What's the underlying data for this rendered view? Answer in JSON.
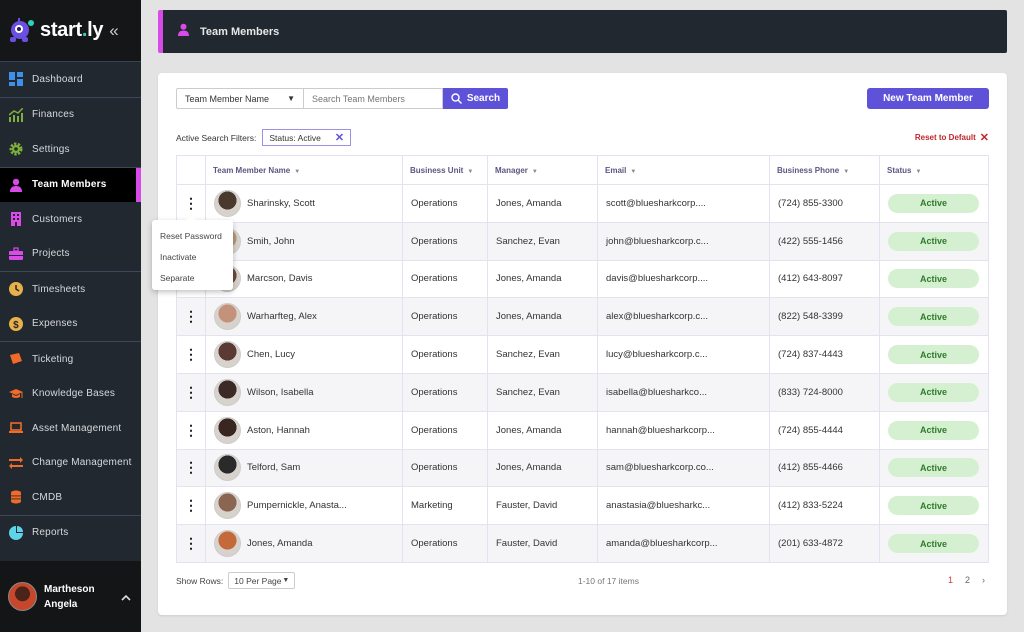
{
  "app": {
    "logo_text_a": "start",
    "logo_text_dot": ".",
    "logo_text_b": "ly",
    "collapse_icon": "«"
  },
  "sidebar": {
    "groups": [
      [
        {
          "label": "Dashboard",
          "icon": "dashboard-icon",
          "color": "#3d8fe8"
        }
      ],
      [
        {
          "label": "Finances",
          "icon": "finances-icon",
          "color": "#7fb03c"
        },
        {
          "label": "Settings",
          "icon": "gear-icon",
          "color": "#7fb03c"
        }
      ],
      [
        {
          "label": "Team Members",
          "icon": "person-icon",
          "color": "#d94be8",
          "active": true
        },
        {
          "label": "Customers",
          "icon": "building-icon",
          "color": "#d94be8"
        },
        {
          "label": "Projects",
          "icon": "briefcase-icon",
          "color": "#d94be8"
        }
      ],
      [
        {
          "label": "Timesheets",
          "icon": "clock-icon",
          "color": "#e9b04a"
        },
        {
          "label": "Expenses",
          "icon": "dollar-icon",
          "color": "#e9b04a"
        }
      ],
      [
        {
          "label": "Ticketing",
          "icon": "ticket-icon",
          "color": "#f06a2a"
        },
        {
          "label": "Knowledge Bases",
          "icon": "graduation-cap-icon",
          "color": "#f06a2a"
        },
        {
          "label": "Asset Management",
          "icon": "laptop-icon",
          "color": "#f06a2a"
        },
        {
          "label": "Change Management",
          "icon": "swap-icon",
          "color": "#f06a2a"
        },
        {
          "label": "CMDB",
          "icon": "database-icon",
          "color": "#f06a2a"
        }
      ],
      [
        {
          "label": "Reports",
          "icon": "pie-chart-icon",
          "color": "#5fd3e8"
        }
      ]
    ],
    "user": {
      "first_line": "Martheson",
      "second_line": "Angela",
      "chevron": "^"
    }
  },
  "header": {
    "title": "Team Members",
    "accent": "#d94be8"
  },
  "search": {
    "field_select": "Team Member Name",
    "placeholder": "Search Team Members",
    "button_label": "Search",
    "new_button_label": "New Team Member"
  },
  "filters": {
    "label": "Active Search Filters:",
    "chip": "Status: Active",
    "chip_remove": "✕",
    "reset_label": "Reset to Default",
    "reset_icon": "✕"
  },
  "table": {
    "columns": [
      "",
      "Team Member Name",
      "Business Unit",
      "Manager",
      "Email",
      "Business Phone",
      "Status"
    ],
    "sort_icon": "▼",
    "rows": [
      {
        "name": "Sharinsky, Scott",
        "unit": "Operations",
        "manager": "Jones, Amanda",
        "email": "scott@bluesharkcorp....",
        "phone": "(724) 855-3300",
        "status": "Active",
        "avatar": "#4a3a2e"
      },
      {
        "name": "Smih, John",
        "unit": "Operations",
        "manager": "Sanchez, Evan",
        "email": "john@bluesharkcorp.c...",
        "phone": "(422) 555-1456",
        "status": "Active",
        "avatar": "#b79a7e"
      },
      {
        "name": "Marcson, Davis",
        "unit": "Operations",
        "manager": "Jones, Amanda",
        "email": "davis@bluesharkcorp....",
        "phone": "(412) 643-8097",
        "status": "Active",
        "avatar": "#6b4b3a"
      },
      {
        "name": "Warharfteg, Alex",
        "unit": "Operations",
        "manager": "Jones, Amanda",
        "email": "alex@bluesharkcorp.c...",
        "phone": "(822) 548-3399",
        "status": "Active",
        "avatar": "#c4917a"
      },
      {
        "name": "Chen, Lucy",
        "unit": "Operations",
        "manager": "Sanchez, Evan",
        "email": "lucy@bluesharkcorp.c...",
        "phone": "(724) 837-4443",
        "status": "Active",
        "avatar": "#5a3a32"
      },
      {
        "name": "Wilson, Isabella",
        "unit": "Operations",
        "manager": "Sanchez, Evan",
        "email": "isabella@bluesharkco...",
        "phone": "(833) 724-8000",
        "status": "Active",
        "avatar": "#3b2a26"
      },
      {
        "name": "Aston, Hannah",
        "unit": "Operations",
        "manager": "Jones, Amanda",
        "email": "hannah@bluesharkcorp...",
        "phone": "(724) 855-4444",
        "status": "Active",
        "avatar": "#3a2620"
      },
      {
        "name": "Telford, Sam",
        "unit": "Operations",
        "manager": "Jones, Amanda",
        "email": "sam@bluesharkcorp.co...",
        "phone": "(412) 855-4466",
        "status": "Active",
        "avatar": "#2a2a2a"
      },
      {
        "name": "Pumpernickle, Anasta...",
        "unit": "Marketing",
        "manager": "Fauster, David",
        "email": "anastasia@bluesharkc...",
        "phone": "(412) 833-5224",
        "status": "Active",
        "avatar": "#8a6552"
      },
      {
        "name": "Jones, Amanda",
        "unit": "Operations",
        "manager": "Fauster, David",
        "email": "amanda@bluesharkcorp...",
        "phone": "(201) 633-4872",
        "status": "Active",
        "avatar": "#c46a3a"
      }
    ]
  },
  "row_menu": {
    "items": [
      "Reset Password",
      "Inactivate",
      "Separate"
    ]
  },
  "footer": {
    "show_rows_label": "Show Rows:",
    "rows_value": "10 Per Page",
    "items_count": "1-10 of 17 items",
    "pages": [
      "1",
      "2"
    ],
    "current_page": "1",
    "next_icon": "›"
  }
}
